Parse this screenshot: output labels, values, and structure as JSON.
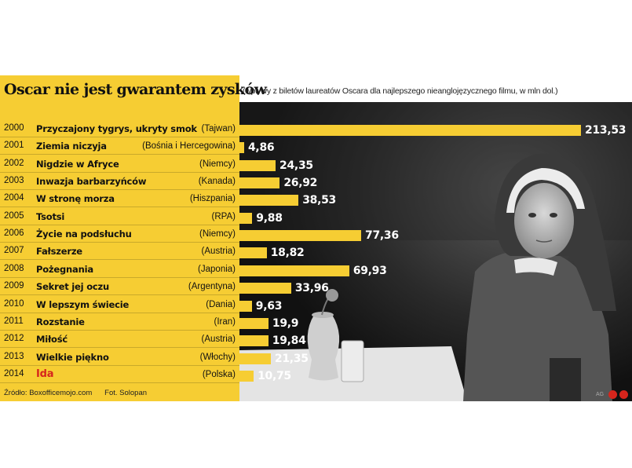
{
  "chart_data": {
    "type": "bar",
    "title": "Oscar nie jest gwarantem zysków",
    "subtitle": "(wpływy z biletów laureatów Oscara dla najlepszego nieanglojęzycznego filmu, w mln dol.)",
    "source": "Źródło: Boxofficemojo.com",
    "photo_credit": "Fot. Solopan",
    "credit": "AG",
    "value_max": 213.53,
    "colors": {
      "bar": "#f6cd33",
      "highlight": "#d6251c",
      "dark": "#1a1a1a"
    },
    "rows": [
      {
        "year": "2000",
        "film": "Przyczajony tygrys, ukryty smok",
        "country": "(Tajwan)",
        "value": 213.53,
        "label": "213,53"
      },
      {
        "year": "2001",
        "film": "Ziemia niczyja",
        "country": "(Bośnia i Hercegowina)",
        "value": 4.86,
        "label": "4,86"
      },
      {
        "year": "2002",
        "film": "Nigdzie w Afryce",
        "country": "(Niemcy)",
        "value": 24.35,
        "label": "24,35"
      },
      {
        "year": "2003",
        "film": "Inwazja barbarzyńców",
        "country": "(Kanada)",
        "value": 26.92,
        "label": "26,92"
      },
      {
        "year": "2004",
        "film": "W stronę morza",
        "country": "(Hiszpania)",
        "value": 38.53,
        "label": "38,53"
      },
      {
        "year": "2005",
        "film": "Tsotsi",
        "country": "(RPA)",
        "value": 9.88,
        "label": "9,88"
      },
      {
        "year": "2006",
        "film": "Życie na podsłuchu",
        "country": "(Niemcy)",
        "value": 77.36,
        "label": "77,36"
      },
      {
        "year": "2007",
        "film": "Fałszerze",
        "country": "(Austria)",
        "value": 18.82,
        "label": "18,82"
      },
      {
        "year": "2008",
        "film": "Pożegnania",
        "country": "(Japonia)",
        "value": 69.93,
        "label": "69,93"
      },
      {
        "year": "2009",
        "film": "Sekret jej oczu",
        "country": "(Argentyna)",
        "value": 33.96,
        "label": "33,96"
      },
      {
        "year": "2010",
        "film": "W lepszym świecie",
        "country": "(Dania)",
        "value": 9.63,
        "label": "9,63"
      },
      {
        "year": "2011",
        "film": "Rozstanie",
        "country": "(Iran)",
        "value": 19.9,
        "label": "19,9"
      },
      {
        "year": "2012",
        "film": "Miłość",
        "country": "(Austria)",
        "value": 19.84,
        "label": "19,84"
      },
      {
        "year": "2013",
        "film": "Wielkie piękno",
        "country": "(Włochy)",
        "value": 21.35,
        "label": "21,35"
      },
      {
        "year": "2014",
        "film": "Ida",
        "country": "(Polska)",
        "value": 10.75,
        "label": "10,75",
        "highlight": true
      }
    ]
  }
}
